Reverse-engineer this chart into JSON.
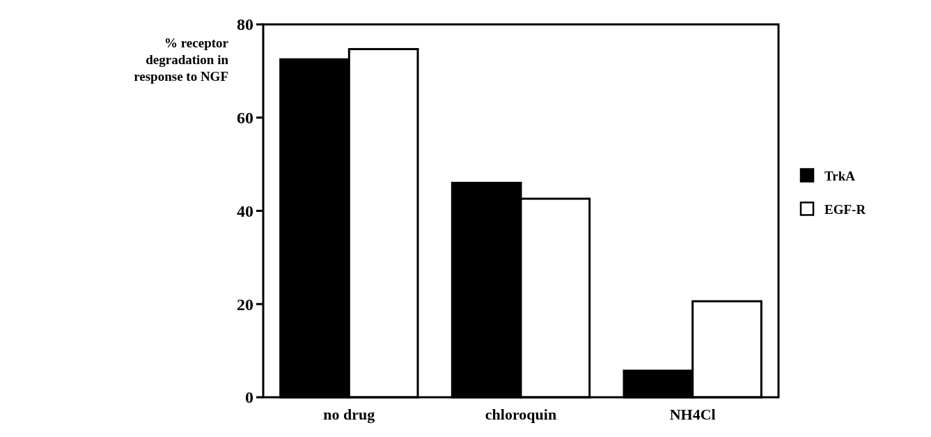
{
  "chart_data": {
    "type": "bar",
    "ylabel": "% receptor degradation in response to NGF",
    "categories": [
      "no drug",
      "chloroquin",
      "NH4Cl"
    ],
    "series": [
      {
        "name": "TrkA",
        "color": "#000000",
        "values": [
          72.5,
          46,
          5.7
        ]
      },
      {
        "name": "EGF-R",
        "color": "#ffffff",
        "values": [
          74.7,
          42.6,
          20.6
        ]
      }
    ],
    "ylim": [
      0,
      80
    ],
    "yticks": [
      0,
      20,
      40,
      60,
      80
    ],
    "grid": false,
    "legend": "right"
  }
}
